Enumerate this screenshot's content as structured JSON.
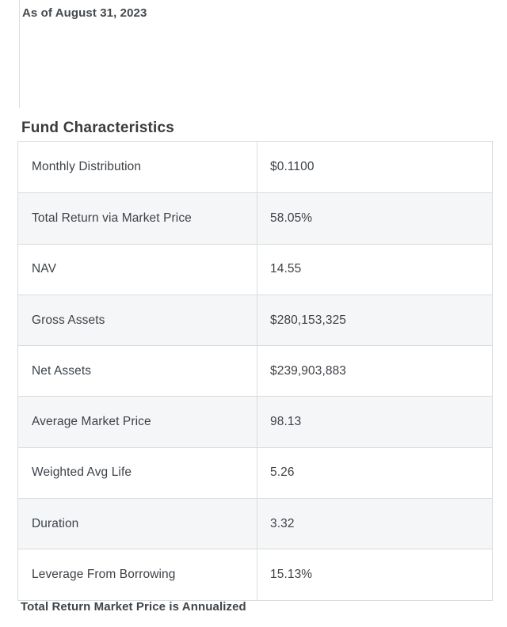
{
  "page": {
    "as_of_date": "As of August 31, 2023",
    "section_title": "Fund Characteristics",
    "footnote": "Total Return Market Price is Annualized"
  },
  "table": {
    "rows": [
      {
        "label": "Monthly Distribution",
        "value": "$0.1100"
      },
      {
        "label": "Total Return via Market Price",
        "value": "58.05%"
      },
      {
        "label": "NAV",
        "value": "14.55"
      },
      {
        "label": "Gross Assets",
        "value": "$280,153,325"
      },
      {
        "label": "Net Assets",
        "value": "$239,903,883"
      },
      {
        "label": "Average Market Price",
        "value": "98.13"
      },
      {
        "label": "Weighted Avg Life",
        "value": "5.26"
      },
      {
        "label": "Duration",
        "value": "3.32"
      },
      {
        "label": "Leverage From Borrowing",
        "value": "15.13%"
      }
    ]
  },
  "colors": {
    "text": "#3d4247",
    "heading": "#3b3b3d",
    "row_alt_bg": "#f5f6f8",
    "border": "#d9dbdc"
  }
}
